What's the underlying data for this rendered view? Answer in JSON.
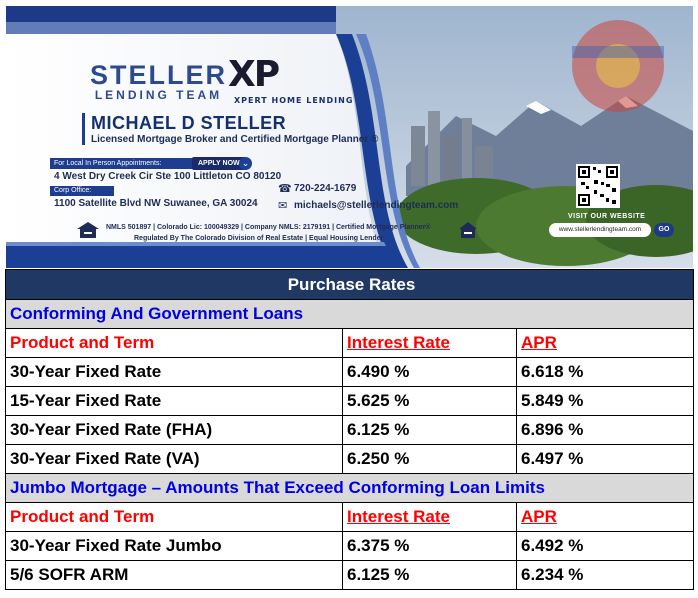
{
  "banner": {
    "brand_name": "STELLER",
    "brand_sub": "LENDING TEAM",
    "partner_logo": "XP",
    "partner_sub": "XPERT HOME LENDING",
    "person_name": "MICHAEL D STELLER",
    "person_title": "Licensed Mortgage Broker and Certified Mortgage Planner ®",
    "appointment_label": "For Local In Person Appointments:",
    "apply_label": "APPLY NOW",
    "address_local": "4 West Dry Creek Cir Ste 100 Littleton CO 80120",
    "corp_label": "Corp Office:",
    "address_corp": "1100 Satellite Blvd NW Suwanee, GA 30024",
    "phone": "720-224-1679",
    "email": "michaels@stellerlendingteam.com",
    "legal_line1": "NMLS 501897 | Colorado Lic: 100049329 | Company NMLS: 2179191 | Certified Mortgage Planner®",
    "legal_line2": "Regulated By The Colorado Division of Real Estate | Equal Housing Lender",
    "visit_label": "VISIT OUR WEBSITE",
    "website": "www.stellerlendingteam.com",
    "go_label": "GO",
    "colors": {
      "navy": "#1c3f96",
      "dark_navy": "#14306f",
      "accent": "#2e4a8f"
    }
  },
  "table": {
    "title": "Purchase Rates",
    "sections": [
      {
        "name": "Conforming And Government Loans",
        "columns": [
          "Product and Term",
          "Interest Rate",
          "APR"
        ],
        "rows": [
          {
            "product": "30-Year Fixed Rate",
            "rate": "6.490 %",
            "apr": "6.618 %"
          },
          {
            "product": "15-Year Fixed Rate",
            "rate": "5.625 %",
            "apr": "5.849 %"
          },
          {
            "product": "30-Year Fixed Rate (FHA)",
            "rate": "6.125 %",
            "apr": "6.896 %"
          },
          {
            "product": "30-Year Fixed Rate (VA)",
            "rate": "6.250 %",
            "apr": "6.497 %"
          }
        ]
      },
      {
        "name": "Jumbo Mortgage – Amounts That Exceed Conforming Loan Limits",
        "columns": [
          "Product and Term",
          "Interest Rate",
          "APR"
        ],
        "rows": [
          {
            "product": "30-Year Fixed Rate Jumbo",
            "rate": "6.375 %",
            "apr": "6.492 %"
          },
          {
            "product": "5/6 SOFR ARM",
            "rate": "6.125 %",
            "apr": "6.234 %"
          }
        ]
      }
    ],
    "colors": {
      "header_bg": "#1f3864",
      "section_bg": "#d9d9d9",
      "section_text": "#0000e6",
      "column_header_text": "#ff0000"
    }
  }
}
